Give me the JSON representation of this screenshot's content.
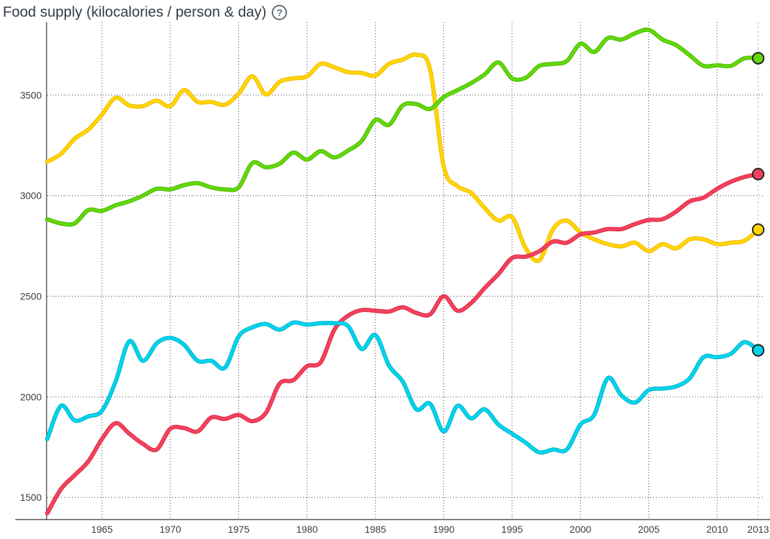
{
  "chart_data": {
    "type": "line",
    "title": "Food supply (kilocalories / person & day)",
    "help_icon": "question-circle-icon",
    "xlabel": "",
    "ylabel": "Food supply (kilocalories / person & day)",
    "xlim": [
      1961,
      2013
    ],
    "ylim": [
      1390,
      3862
    ],
    "x_ticks": [
      1965,
      1970,
      1975,
      1980,
      1985,
      1990,
      1995,
      2000,
      2005,
      2010,
      2013
    ],
    "y_ticks": [
      1500,
      2000,
      2500,
      3000,
      3500
    ],
    "grid": true,
    "x": [
      1961,
      1962,
      1963,
      1964,
      1965,
      1966,
      1967,
      1968,
      1969,
      1970,
      1971,
      1972,
      1973,
      1974,
      1975,
      1976,
      1977,
      1978,
      1979,
      1980,
      1981,
      1982,
      1983,
      1984,
      1985,
      1986,
      1987,
      1988,
      1989,
      1990,
      1991,
      1992,
      1993,
      1994,
      1995,
      1996,
      1997,
      1998,
      1999,
      2000,
      2001,
      2002,
      2003,
      2004,
      2005,
      2006,
      2007,
      2008,
      2009,
      2010,
      2011,
      2012,
      2013
    ],
    "series": [
      {
        "name": "yellow",
        "color": "#ffd600",
        "edge": "#f0b800",
        "values": [
          3169,
          3207,
          3283,
          3328,
          3403,
          3486,
          3448,
          3445,
          3472,
          3445,
          3524,
          3466,
          3466,
          3452,
          3507,
          3593,
          3503,
          3566,
          3583,
          3593,
          3655,
          3638,
          3614,
          3610,
          3597,
          3655,
          3676,
          3700,
          3628,
          3145,
          3048,
          3014,
          2938,
          2876,
          2893,
          2738,
          2679,
          2834,
          2876,
          2817,
          2783,
          2759,
          2748,
          2766,
          2724,
          2759,
          2738,
          2783,
          2783,
          2759,
          2766,
          2776,
          2831
        ]
      },
      {
        "name": "green",
        "color": "#62d80a",
        "edge": "#4cb800",
        "values": [
          2883,
          2862,
          2862,
          2928,
          2924,
          2952,
          2972,
          3000,
          3034,
          3031,
          3052,
          3062,
          3041,
          3031,
          3041,
          3162,
          3141,
          3159,
          3214,
          3179,
          3221,
          3190,
          3224,
          3272,
          3376,
          3352,
          3448,
          3455,
          3431,
          3490,
          3524,
          3559,
          3603,
          3662,
          3583,
          3586,
          3645,
          3655,
          3669,
          3755,
          3714,
          3783,
          3776,
          3807,
          3824,
          3776,
          3748,
          3697,
          3645,
          3648,
          3645,
          3683,
          3683
        ]
      },
      {
        "name": "red",
        "color": "#f4415c",
        "edge": "#d92a45",
        "values": [
          1421,
          1541,
          1610,
          1679,
          1790,
          1869,
          1817,
          1766,
          1738,
          1841,
          1845,
          1828,
          1897,
          1890,
          1910,
          1879,
          1921,
          2066,
          2083,
          2152,
          2172,
          2334,
          2403,
          2431,
          2428,
          2424,
          2445,
          2417,
          2410,
          2500,
          2428,
          2466,
          2541,
          2610,
          2690,
          2697,
          2724,
          2772,
          2766,
          2807,
          2817,
          2834,
          2834,
          2859,
          2879,
          2883,
          2921,
          2972,
          2990,
          3034,
          3069,
          3093,
          3107
        ]
      },
      {
        "name": "cyan",
        "color": "#00d4ec",
        "edge": "#00b3cc",
        "values": [
          1790,
          1955,
          1883,
          1903,
          1931,
          2076,
          2276,
          2179,
          2266,
          2293,
          2259,
          2179,
          2179,
          2145,
          2300,
          2345,
          2362,
          2334,
          2369,
          2359,
          2366,
          2366,
          2352,
          2238,
          2307,
          2155,
          2076,
          1938,
          1966,
          1828,
          1955,
          1893,
          1938,
          1862,
          1817,
          1772,
          1724,
          1738,
          1738,
          1862,
          1910,
          2093,
          2007,
          1972,
          2034,
          2041,
          2052,
          2093,
          2197,
          2197,
          2214,
          2272,
          2231
        ]
      }
    ]
  }
}
